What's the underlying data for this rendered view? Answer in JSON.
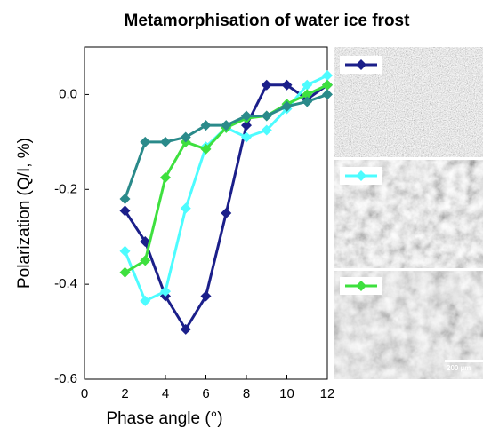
{
  "chart_data": {
    "type": "line",
    "title": "Metamorphisation of water ice frost",
    "xlabel": "Phase angle (°)",
    "ylabel": "Polarization (Q/I, %)",
    "x": [
      2,
      3,
      4,
      5,
      6,
      7,
      8,
      9,
      10,
      11,
      12
    ],
    "xlim": [
      0,
      12
    ],
    "xticks": [
      0,
      2,
      4,
      6,
      8,
      10,
      12
    ],
    "ylim": [
      -0.6,
      0.1
    ],
    "yticks": [
      -0.6,
      -0.4,
      -0.2,
      {
        "value": 0,
        "label": "0.0"
      }
    ],
    "series": [
      {
        "color": "#1b1f8a",
        "values": [
          -0.245,
          -0.31,
          -0.425,
          -0.495,
          -0.425,
          -0.25,
          -0.065,
          0.02,
          0.02,
          -0.01,
          0.02
        ]
      },
      {
        "color": "#4dfcff",
        "values": [
          -0.33,
          -0.435,
          -0.415,
          -0.24,
          -0.11,
          -0.07,
          -0.09,
          -0.075,
          -0.03,
          0.02,
          0.04
        ]
      },
      {
        "color": "#3ee03e",
        "values": [
          -0.375,
          -0.35,
          -0.175,
          -0.1,
          -0.115,
          -0.07,
          -0.05,
          -0.045,
          -0.02,
          0.0,
          0.02
        ]
      },
      {
        "color": "#2a8a8a",
        "values": [
          -0.22,
          -0.1,
          -0.1,
          -0.09,
          -0.065,
          -0.065,
          -0.045,
          -0.045,
          -0.025,
          -0.015,
          0.0
        ]
      }
    ],
    "scale_bar": "200 µm"
  }
}
